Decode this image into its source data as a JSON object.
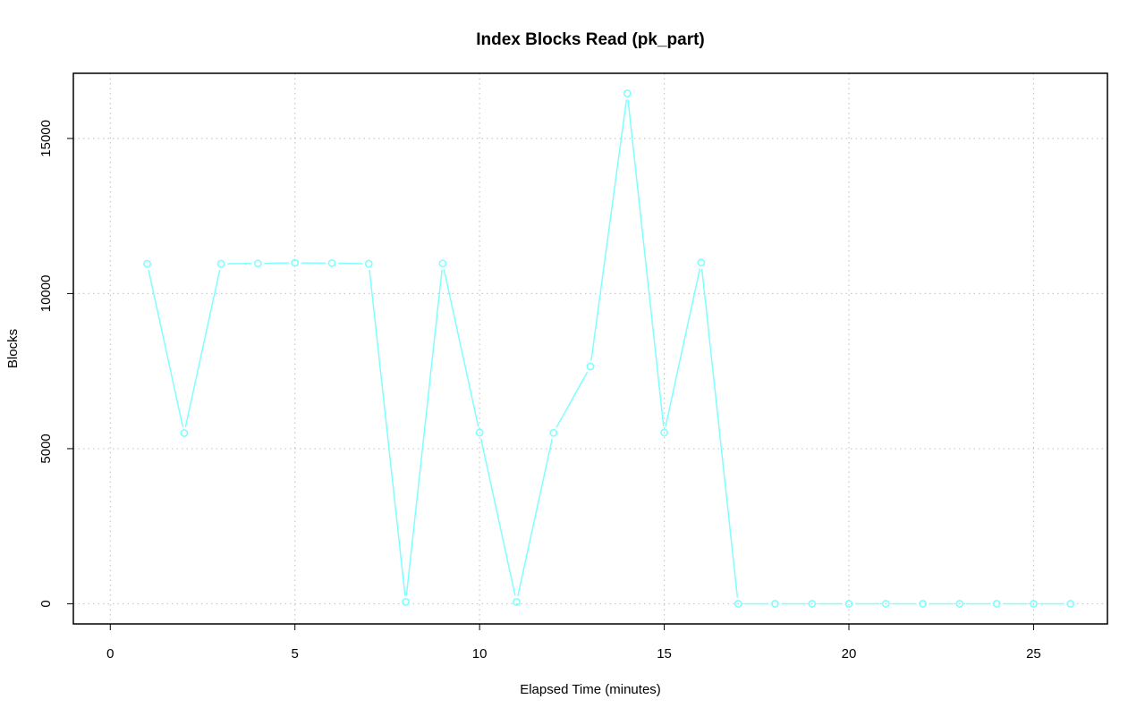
{
  "chart_data": {
    "type": "line",
    "title": "Index Blocks Read (pk_part)",
    "xlabel": "Elapsed Time (minutes)",
    "ylabel": "Blocks",
    "xlim": [
      -1,
      27
    ],
    "ylim": [
      -650,
      17100
    ],
    "xticks": [
      0,
      5,
      10,
      15,
      20,
      25
    ],
    "xtick_labels": [
      "0",
      "5",
      "10",
      "15",
      "20",
      "25"
    ],
    "yticks": [
      0,
      5000,
      10000,
      15000
    ],
    "ytick_labels": [
      "0",
      "5000",
      "10000",
      "15000"
    ],
    "grid": true,
    "line_color": "#7fffff",
    "series": [
      {
        "x": [
          1,
          2,
          3,
          4,
          5,
          6,
          7,
          8,
          9,
          10,
          11,
          12,
          13,
          14,
          15,
          16,
          17,
          18,
          19,
          20,
          21,
          22,
          23,
          24,
          25,
          26
        ],
        "y": [
          10960,
          5500,
          10960,
          10970,
          10990,
          10980,
          10960,
          60,
          10970,
          5520,
          60,
          5510,
          7650,
          16450,
          5520,
          11000,
          0,
          0,
          0,
          0,
          0,
          0,
          0,
          0,
          0,
          0
        ]
      }
    ]
  }
}
